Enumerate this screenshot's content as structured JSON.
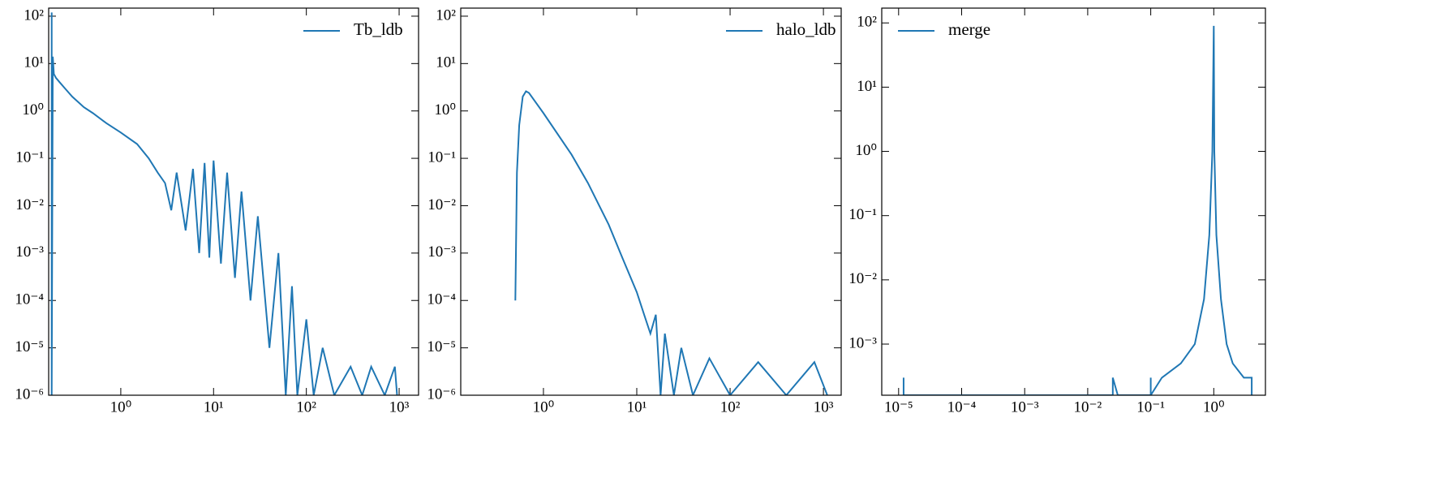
{
  "chart_data": [
    {
      "type": "line",
      "xscale": "log",
      "yscale": "log",
      "legend": "upper right",
      "xlim": [
        0.167,
        1620
      ],
      "ylim": [
        1e-06,
        148
      ],
      "xticks": [
        {
          "value": 1,
          "label": "10⁰"
        },
        {
          "value": 10,
          "label": "10¹"
        },
        {
          "value": 100,
          "label": "10²"
        },
        {
          "value": 1000,
          "label": "10³"
        }
      ],
      "yticks": [
        {
          "value": 1e-06,
          "label": "10⁻⁶"
        },
        {
          "value": 1e-05,
          "label": "10⁻⁵"
        },
        {
          "value": 0.0001,
          "label": "10⁻⁴"
        },
        {
          "value": 0.001,
          "label": "10⁻³"
        },
        {
          "value": 0.01,
          "label": "10⁻²"
        },
        {
          "value": 0.1,
          "label": "10⁻¹"
        },
        {
          "value": 1,
          "label": "10⁰"
        },
        {
          "value": 10,
          "label": "10¹"
        },
        {
          "value": 100,
          "label": "10²"
        }
      ],
      "x": [
        0.18,
        0.18,
        0.185,
        0.19,
        0.2,
        0.22,
        0.25,
        0.3,
        0.4,
        0.5,
        0.7,
        1,
        1.5,
        2,
        2.5,
        3,
        3.5,
        4,
        5,
        6,
        7,
        8,
        9,
        10,
        12,
        14,
        17,
        20,
        25,
        30,
        40,
        50,
        60,
        70,
        80,
        100,
        120,
        150,
        200,
        300,
        400,
        500,
        700,
        900,
        950
      ],
      "series": [
        {
          "name": "Tb_ldb",
          "color": "#1f77b4",
          "values": [
            120,
            1e-06,
            14,
            6,
            5,
            4,
            3,
            2,
            1.2,
            0.9,
            0.55,
            0.35,
            0.2,
            0.1,
            0.05,
            0.03,
            0.008,
            0.05,
            0.003,
            0.06,
            0.001,
            0.08,
            0.0008,
            0.09,
            0.0006,
            0.05,
            0.0003,
            0.02,
            0.0001,
            0.006,
            1e-05,
            0.001,
            1e-06,
            0.0002,
            1e-06,
            4e-05,
            1e-06,
            1e-05,
            1e-06,
            4e-06,
            1e-06,
            4e-06,
            1e-06,
            4e-06,
            1e-06
          ]
        }
      ]
    },
    {
      "type": "line",
      "xscale": "log",
      "yscale": "log",
      "legend": "upper right",
      "xlim": [
        0.13,
        1550
      ],
      "ylim": [
        1e-06,
        148
      ],
      "xticks": [
        {
          "value": 1,
          "label": "10⁰"
        },
        {
          "value": 10,
          "label": "10¹"
        },
        {
          "value": 100,
          "label": "10²"
        },
        {
          "value": 1000,
          "label": "10³"
        }
      ],
      "yticks": [
        {
          "value": 1e-06,
          "label": "10⁻⁶"
        },
        {
          "value": 1e-05,
          "label": "10⁻⁵"
        },
        {
          "value": 0.0001,
          "label": "10⁻⁴"
        },
        {
          "value": 0.001,
          "label": "10⁻³"
        },
        {
          "value": 0.01,
          "label": "10⁻²"
        },
        {
          "value": 0.1,
          "label": "10⁻¹"
        },
        {
          "value": 1,
          "label": "10⁰"
        },
        {
          "value": 10,
          "label": "10¹"
        },
        {
          "value": 100,
          "label": "10²"
        }
      ],
      "x": [
        0.5,
        0.52,
        0.55,
        0.6,
        0.65,
        0.7,
        1,
        2,
        3,
        5,
        7,
        10,
        12,
        14,
        16,
        18,
        20,
        25,
        30,
        40,
        60,
        100,
        200,
        400,
        800,
        1100
      ],
      "series": [
        {
          "name": "halo_ldb",
          "color": "#1f77b4",
          "values": [
            0.0001,
            0.05,
            0.5,
            2,
            2.6,
            2.4,
            0.9,
            0.12,
            0.03,
            0.004,
            0.0008,
            0.00015,
            5e-05,
            2e-05,
            5e-05,
            1e-06,
            2e-05,
            1e-06,
            1e-05,
            1e-06,
            6e-06,
            1e-06,
            5e-06,
            1e-06,
            5e-06,
            1e-06
          ]
        }
      ]
    },
    {
      "type": "line",
      "xscale": "log",
      "yscale": "log",
      "legend": "upper left",
      "xlim": [
        5.4e-06,
        6.6
      ],
      "ylim": [
        0.00016,
        170
      ],
      "xticks": [
        {
          "value": 1e-05,
          "label": "10⁻⁵"
        },
        {
          "value": 0.0001,
          "label": "10⁻⁴"
        },
        {
          "value": 0.001,
          "label": "10⁻³"
        },
        {
          "value": 0.01,
          "label": "10⁻²"
        },
        {
          "value": 0.1,
          "label": "10⁻¹"
        },
        {
          "value": 1,
          "label": "10⁰"
        }
      ],
      "yticks": [
        {
          "value": 0.001,
          "label": "10⁻³"
        },
        {
          "value": 0.01,
          "label": "10⁻²"
        },
        {
          "value": 0.1,
          "label": "10⁻¹"
        },
        {
          "value": 1,
          "label": "10⁰"
        },
        {
          "value": 10,
          "label": "10¹"
        },
        {
          "value": 100,
          "label": "10²"
        }
      ],
      "x": [
        1.2e-05,
        1.2e-05,
        1.2e-05,
        0.025,
        0.025,
        0.03,
        0.1,
        0.1,
        0.1,
        0.15,
        0.3,
        0.5,
        0.7,
        0.85,
        0.95,
        1,
        1.02,
        1.1,
        1.3,
        1.6,
        2,
        3,
        4,
        4
      ],
      "series": [
        {
          "name": "merge",
          "color": "#1f77b4",
          "values": [
            0.00016,
            0.0003,
            0.00016,
            0.00016,
            0.0003,
            0.00016,
            0.00016,
            0.0003,
            0.00016,
            0.0003,
            0.0005,
            0.001,
            0.005,
            0.05,
            1,
            90,
            1,
            0.05,
            0.005,
            0.001,
            0.0005,
            0.0003,
            0.0003,
            0.00016
          ]
        }
      ]
    }
  ]
}
